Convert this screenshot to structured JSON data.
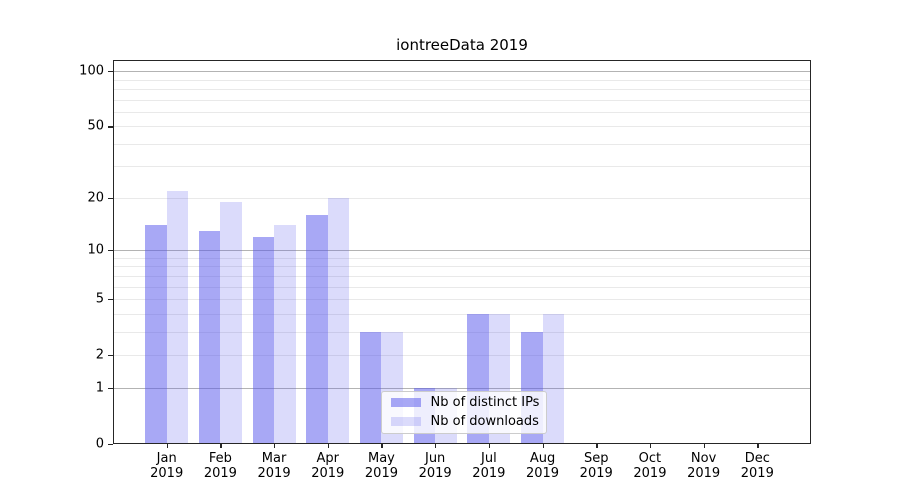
{
  "title": "iontreeData 2019",
  "chart_data": {
    "type": "bar",
    "title": "iontreeData 2019",
    "categories": [
      "Jan",
      "Feb",
      "Mar",
      "Apr",
      "May",
      "Jun",
      "Jul",
      "Aug",
      "Sep",
      "Oct",
      "Nov",
      "Dec"
    ],
    "category_year": "2019",
    "series": [
      {
        "name": "Nb of distinct IPs",
        "color": "rgba(85,85,235,0.51)",
        "values": [
          14,
          13,
          12,
          16,
          3,
          1,
          4,
          3,
          0,
          0,
          0,
          0
        ]
      },
      {
        "name": "Nb of downloads",
        "color": "rgba(85,85,235,0.21)",
        "values": [
          22,
          19,
          14,
          20,
          3,
          1,
          4,
          4,
          0,
          0,
          0,
          0
        ]
      }
    ],
    "y_axis": {
      "scale": "symlog-log10(1+v)",
      "tick_labels": [
        0,
        1,
        2,
        5,
        10,
        20,
        50,
        100
      ],
      "major_gridlines": [
        1,
        10,
        100
      ],
      "minor_gridlines": [
        2,
        3,
        4,
        5,
        6,
        7,
        8,
        9,
        20,
        30,
        40,
        50,
        60,
        70,
        80,
        90
      ],
      "ylim": [
        0,
        115
      ],
      "grid": "on"
    },
    "xlabel": "",
    "ylabel": "",
    "legend_position": "lower-center",
    "colors": {
      "axis": "#262626",
      "major_grid": "#b3b3b3",
      "minor_grid": "#e9e9e9",
      "text": "#000000",
      "background": "#ffffff"
    }
  }
}
